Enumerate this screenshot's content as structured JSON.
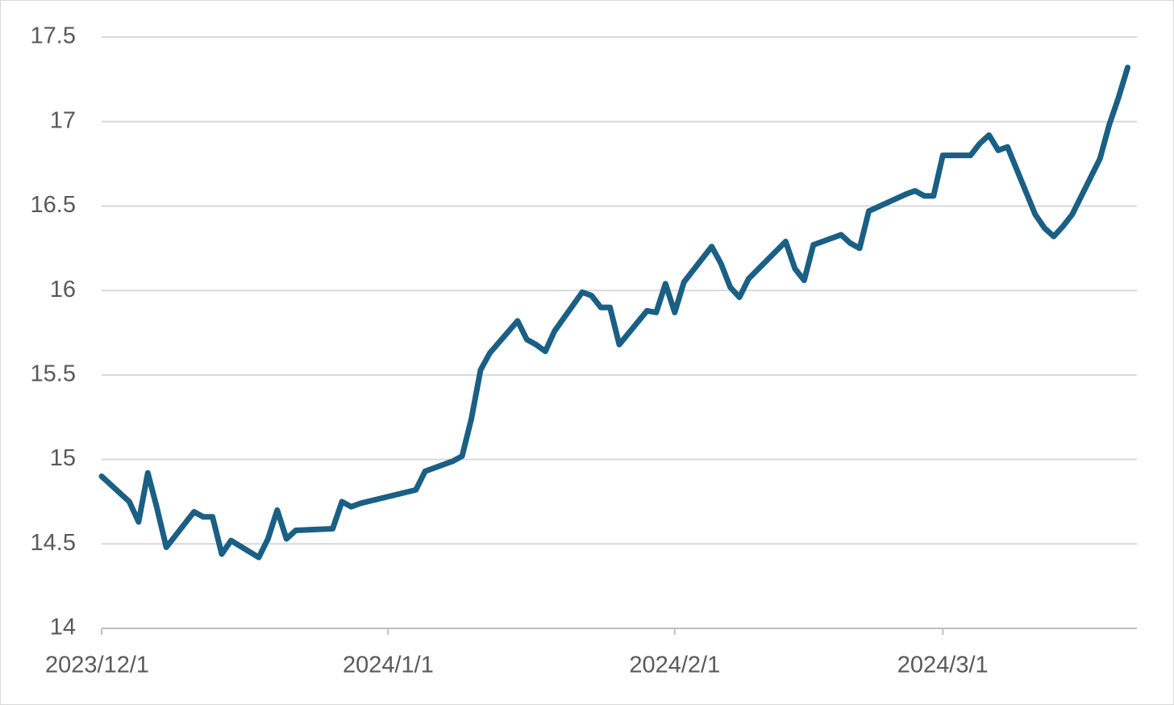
{
  "chart_data": {
    "type": "line",
    "x": [
      "2023/12/1",
      "2023/12/4",
      "2023/12/5",
      "2023/12/6",
      "2023/12/7",
      "2023/12/8",
      "2023/12/11",
      "2023/12/12",
      "2023/12/13",
      "2023/12/14",
      "2023/12/15",
      "2023/12/18",
      "2023/12/19",
      "2023/12/20",
      "2023/12/21",
      "2023/12/22",
      "2023/12/26",
      "2023/12/27",
      "2023/12/28",
      "2023/12/29",
      "2024/1/4",
      "2024/1/5",
      "2024/1/8",
      "2024/1/9",
      "2024/1/10",
      "2024/1/11",
      "2024/1/12",
      "2024/1/15",
      "2024/1/16",
      "2024/1/17",
      "2024/1/18",
      "2024/1/19",
      "2024/1/22",
      "2024/1/23",
      "2024/1/24",
      "2024/1/25",
      "2024/1/26",
      "2024/1/29",
      "2024/1/30",
      "2024/1/31",
      "2024/2/1",
      "2024/2/2",
      "2024/2/5",
      "2024/2/6",
      "2024/2/7",
      "2024/2/8",
      "2024/2/9",
      "2024/2/13",
      "2024/2/14",
      "2024/2/15",
      "2024/2/16",
      "2024/2/19",
      "2024/2/20",
      "2024/2/21",
      "2024/2/22",
      "2024/2/26",
      "2024/2/27",
      "2024/2/28",
      "2024/2/29",
      "2024/3/1",
      "2024/3/4",
      "2024/3/5",
      "2024/3/6",
      "2024/3/7",
      "2024/3/8",
      "2024/3/11",
      "2024/3/12",
      "2024/3/13",
      "2024/3/14",
      "2024/3/15",
      "2024/3/18",
      "2024/3/19",
      "2024/3/20",
      "2024/3/21"
    ],
    "series": [
      {
        "color": "#1a5f84",
        "values": [
          14.9,
          14.75,
          14.63,
          14.92,
          14.71,
          14.48,
          14.69,
          14.66,
          14.66,
          14.44,
          14.52,
          14.42,
          14.53,
          14.7,
          14.53,
          14.58,
          14.59,
          14.75,
          14.72,
          14.74,
          14.82,
          14.93,
          14.99,
          15.02,
          15.24,
          15.53,
          15.63,
          15.82,
          15.71,
          15.68,
          15.64,
          15.76,
          15.99,
          15.97,
          15.9,
          15.9,
          15.68,
          15.88,
          15.87,
          16.04,
          15.87,
          16.05,
          16.26,
          16.16,
          16.02,
          15.96,
          16.07,
          16.29,
          16.13,
          16.06,
          16.27,
          16.33,
          16.28,
          16.25,
          16.47,
          16.57,
          16.59,
          16.56,
          16.56,
          16.8,
          16.8,
          16.87,
          16.92,
          16.83,
          16.85,
          16.45,
          16.37,
          16.32,
          16.38,
          16.45,
          16.78,
          16.98,
          17.14,
          17.32
        ]
      }
    ],
    "xlim": [
      "2023/12/1",
      "2024/3/22"
    ],
    "xticks": [
      "2023/12/1",
      "2024/1/1",
      "2024/2/1",
      "2024/3/1"
    ],
    "ylim": [
      14,
      17.5
    ],
    "yticks": [
      14,
      14.5,
      15,
      15.5,
      16,
      16.5,
      17,
      17.5
    ],
    "grid": true
  }
}
